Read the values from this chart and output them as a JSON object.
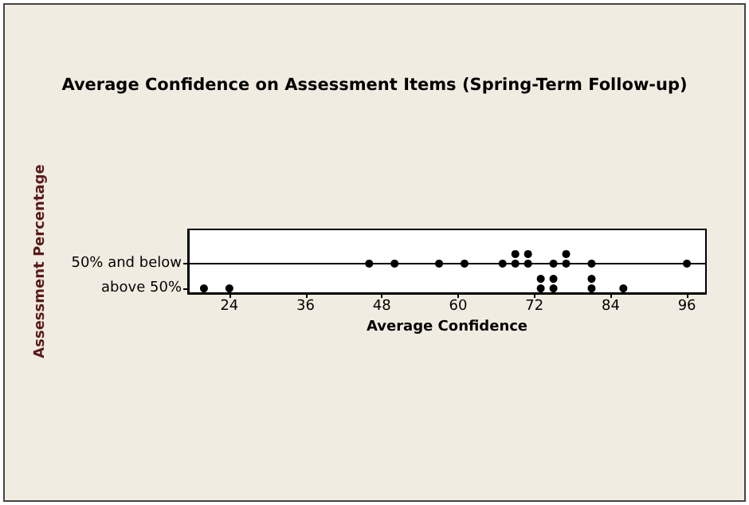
{
  "chart_data": {
    "type": "scatter",
    "title": "Average Confidence on Assessment Items (Spring-Term Follow-up)",
    "xlabel": "Average Confidence",
    "ylabel": "Assessment Percentage",
    "orientation": "horizontal",
    "categories": [
      "50% and below",
      "above 50%"
    ],
    "series": [
      {
        "color": "#000000",
        "values": [
          46,
          20
        ]
      },
      {
        "color": "#000000",
        "values": [
          50,
          24
        ]
      },
      {
        "color": "#000000",
        "values": [
          57,
          73
        ]
      },
      {
        "color": "#000000",
        "values": [
          61,
          73
        ]
      },
      {
        "color": "#000000",
        "values": [
          67,
          75
        ]
      },
      {
        "color": "#000000",
        "values": [
          69,
          75
        ]
      },
      {
        "color": "#000000",
        "values": [
          69,
          81
        ]
      },
      {
        "color": "#000000",
        "values": [
          71,
          81
        ]
      },
      {
        "color": "#000000",
        "values": [
          71,
          86
        ]
      },
      {
        "color": "#000000",
        "values": [
          75,
          null
        ]
      },
      {
        "color": "#000000",
        "values": [
          77,
          null
        ]
      },
      {
        "color": "#000000",
        "values": [
          77,
          null
        ]
      },
      {
        "color": "#000000",
        "values": [
          81,
          null
        ]
      },
      {
        "color": "#000000",
        "values": [
          96,
          null
        ]
      }
    ],
    "xlim": [
      17.5,
      99
    ],
    "xticks": [
      24,
      36,
      48,
      60,
      72,
      84,
      96
    ],
    "grid": "y",
    "marker": "circle"
  }
}
